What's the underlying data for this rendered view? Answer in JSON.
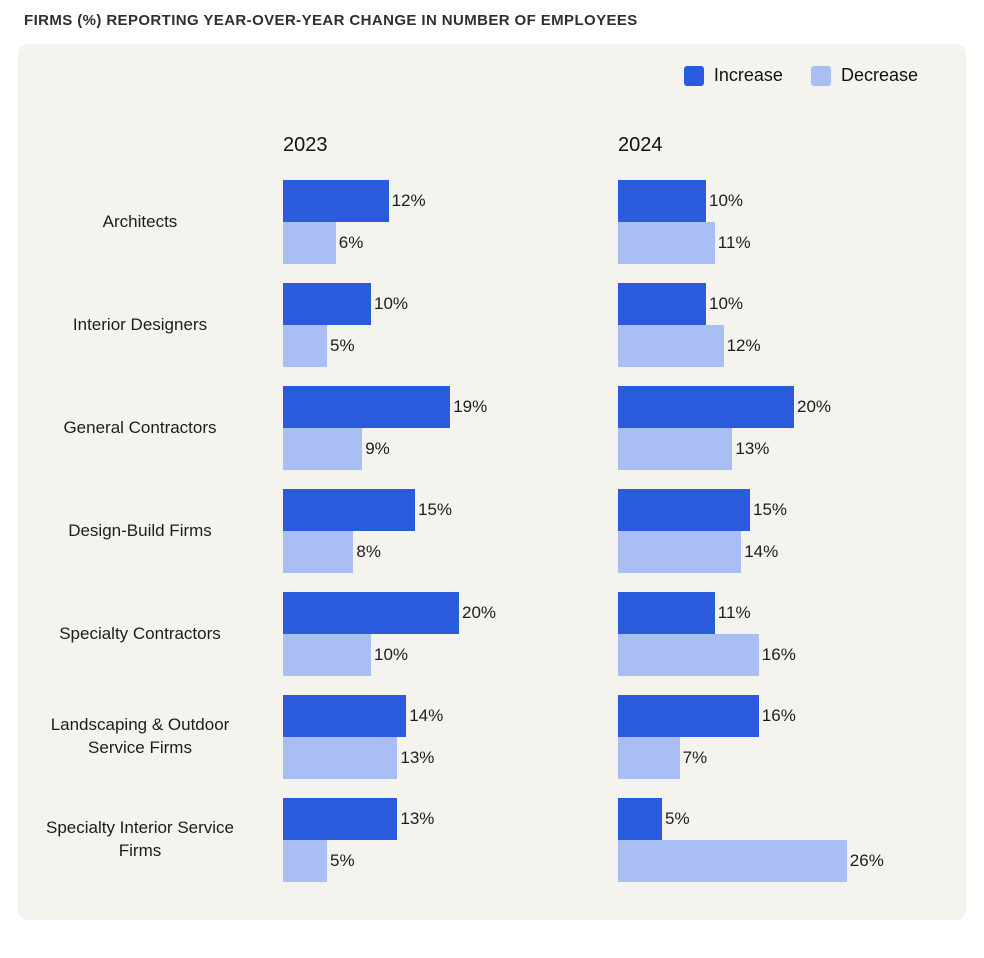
{
  "title": "FIRMS (%) REPORTING YEAR-OVER-YEAR CHANGE IN NUMBER OF EMPLOYEES",
  "legend": [
    {
      "label": "Increase",
      "color": "#2A5BDC"
    },
    {
      "label": "Decrease",
      "color": "#A9BEF2"
    }
  ],
  "colors": {
    "increase": "#2A5BDC",
    "decrease": "#A9BEF2",
    "panel_background": "#F5F3EE",
    "page_background": "#FFFFFF",
    "text": "#1D1D1D"
  },
  "chart_data": {
    "type": "bar",
    "orientation": "horizontal",
    "unit": "%",
    "title": "FIRMS (%) REPORTING YEAR-OVER-YEAR CHANGE IN NUMBER OF EMPLOYEES",
    "column_headers": [
      "2023",
      "2024"
    ],
    "legend_entries": [
      "Increase",
      "Decrease"
    ],
    "legend_position": "top-right",
    "grid": false,
    "value_range": [
      0,
      26
    ],
    "categories": [
      "Architects",
      "Interior Designers",
      "General Contractors",
      "Design-Build Firms",
      "Specialty Contractors",
      "Landscaping & Outdoor Service Firms",
      "Specialty Interior Service Firms"
    ],
    "series": [
      {
        "name": "2023 Increase",
        "column": "2023",
        "kind": "increase",
        "values": [
          12,
          10,
          19,
          15,
          20,
          14,
          13
        ]
      },
      {
        "name": "2023 Decrease",
        "column": "2023",
        "kind": "decrease",
        "values": [
          6,
          5,
          9,
          8,
          10,
          13,
          5
        ]
      },
      {
        "name": "2024 Increase",
        "column": "2024",
        "kind": "increase",
        "values": [
          10,
          10,
          20,
          15,
          11,
          16,
          5
        ]
      },
      {
        "name": "2024 Decrease",
        "column": "2024",
        "kind": "decrease",
        "values": [
          11,
          12,
          13,
          14,
          16,
          7,
          26
        ]
      }
    ]
  }
}
